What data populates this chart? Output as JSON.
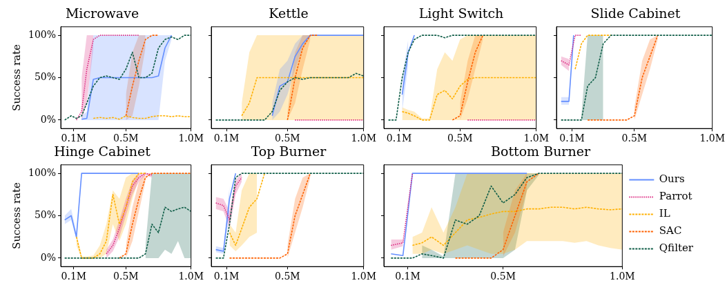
{
  "chart_data": [
    {
      "type": "line",
      "title": "Microwave",
      "ylabel": "Success rate",
      "xlim": [
        0,
        1
      ],
      "xticks": [
        {
          "value": 0.1,
          "label": "0.1M"
        },
        {
          "value": 0.5,
          "label": "0.5M"
        },
        {
          "value": 1.0,
          "label": "1.0M"
        }
      ],
      "ylim": [
        -10,
        110
      ],
      "yticks": [
        {
          "value": 0,
          "label": "0%"
        },
        {
          "value": 50,
          "label": "50%"
        },
        {
          "value": 100,
          "label": "100%"
        }
      ],
      "series": [
        {
          "color": "#648fff",
          "line_style": "solid",
          "x": [
            0.16,
            0.2,
            0.25,
            0.3,
            0.35,
            0.4,
            0.45,
            0.5,
            0.55,
            0.6,
            0.65,
            0.7,
            0.75,
            0.8,
            0.85
          ],
          "values": [
            1,
            2,
            48,
            50,
            50,
            50,
            50,
            50,
            50,
            50,
            50,
            50,
            52,
            85,
            100
          ],
          "lower": [
            0,
            0,
            0,
            0,
            0,
            0,
            0,
            0,
            0,
            0,
            0,
            0,
            0,
            70,
            95
          ],
          "upper": [
            5,
            10,
            100,
            100,
            100,
            100,
            100,
            100,
            100,
            100,
            100,
            100,
            100,
            100,
            100
          ]
        },
        {
          "color": "#dc267f",
          "line_style": "dotted",
          "x": [
            0.12,
            0.16,
            0.2,
            0.25,
            0.3,
            0.35,
            0.4,
            0.45,
            0.5,
            0.55,
            0.6
          ],
          "values": [
            0,
            10,
            60,
            95,
            100,
            100,
            100,
            100,
            100,
            100,
            100
          ],
          "lower": [
            null,
            0,
            20,
            85,
            null,
            null,
            null,
            null,
            null,
            null,
            null
          ],
          "upper": [
            null,
            50,
            100,
            100,
            null,
            null,
            null,
            null,
            null,
            null,
            null
          ]
        },
        {
          "color": "#ffb000",
          "line_style": "dashed",
          "x": [
            0.25,
            0.3,
            0.35,
            0.4,
            0.45,
            0.5,
            0.55,
            0.6,
            0.65,
            0.7,
            0.75,
            0.8,
            0.85,
            0.9,
            0.95,
            1.0
          ],
          "values": [
            2,
            3,
            2,
            3,
            1,
            5,
            3,
            2,
            2,
            4,
            5,
            5,
            4,
            5,
            4,
            4
          ]
        },
        {
          "color": "#fe6100",
          "line_style": "dashed",
          "x": [
            0.5,
            0.55,
            0.6,
            0.65,
            0.7,
            0.75
          ],
          "values": [
            5,
            40,
            70,
            95,
            100,
            100
          ],
          "lower": [
            0,
            5,
            40,
            85,
            null,
            null
          ],
          "upper": [
            30,
            80,
            100,
            100,
            null,
            null
          ]
        },
        {
          "color": "#0d5c46",
          "line_style": "dashed",
          "x": [
            0.03,
            0.08,
            0.12,
            0.16,
            0.2,
            0.25,
            0.3,
            0.35,
            0.4,
            0.45,
            0.5,
            0.55,
            0.6,
            0.65,
            0.7,
            0.75,
            0.8,
            0.85,
            0.9,
            0.95,
            1.0
          ],
          "values": [
            0,
            5,
            2,
            5,
            20,
            40,
            50,
            52,
            50,
            48,
            60,
            80,
            50,
            50,
            55,
            85,
            95,
            98,
            95,
            100,
            100
          ]
        }
      ]
    },
    {
      "type": "line",
      "title": "Kettle",
      "tick_labels": "x",
      "xlim": [
        0,
        1
      ],
      "xticks": [
        {
          "value": 0.1,
          "label": "0.1M"
        },
        {
          "value": 0.5,
          "label": "0.5M"
        },
        {
          "value": 1.0,
          "label": "1.0M"
        }
      ],
      "ylim": [
        -10,
        110
      ],
      "yticks": [
        0,
        50,
        100
      ],
      "series": [
        {
          "color": "#648fff",
          "line_style": "solid",
          "x": [
            0.4,
            0.45,
            0.5,
            0.55,
            0.6,
            0.65,
            0.7,
            0.75,
            0.8,
            0.85,
            0.9,
            0.95,
            1.0
          ],
          "values": [
            5,
            40,
            45,
            75,
            90,
            100,
            100,
            100,
            100,
            100,
            100,
            100,
            100
          ],
          "lower": [
            0,
            10,
            30,
            60,
            85,
            98,
            null,
            null,
            null,
            null,
            null,
            null,
            null
          ],
          "upper": [
            20,
            60,
            70,
            90,
            100,
            100,
            null,
            null,
            null,
            null,
            null,
            null,
            null
          ]
        },
        {
          "color": "#dc267f",
          "line_style": "dotted",
          "x": [
            0.55,
            0.6,
            0.65,
            0.7,
            0.75,
            0.8,
            0.85,
            0.9,
            0.95,
            1.0
          ],
          "values": [
            0,
            0,
            0,
            0,
            0,
            0,
            0,
            0,
            0,
            0
          ]
        },
        {
          "color": "#ffb000",
          "line_style": "dashed",
          "x": [
            0.2,
            0.25,
            0.3,
            0.35,
            0.4,
            0.45,
            0.5,
            0.55,
            0.6,
            0.65,
            0.7,
            0.75,
            0.8,
            0.85,
            0.9,
            0.95,
            1.0
          ],
          "values": [
            5,
            20,
            50,
            50,
            50,
            50,
            50,
            50,
            50,
            50,
            50,
            50,
            50,
            50,
            50,
            50,
            50
          ],
          "lower": [
            0,
            0,
            0,
            0,
            0,
            0,
            0,
            0,
            0,
            0,
            0,
            0,
            0,
            0,
            0,
            0,
            0
          ],
          "upper": [
            20,
            80,
            100,
            100,
            100,
            100,
            100,
            100,
            100,
            100,
            100,
            100,
            100,
            100,
            100,
            100,
            100
          ]
        },
        {
          "color": "#fe6100",
          "line_style": "dashed",
          "x": [
            0.5,
            0.55,
            0.6,
            0.65,
            0.7
          ],
          "values": [
            0,
            50,
            85,
            100,
            100
          ],
          "lower": [
            0,
            20,
            60,
            95,
            null
          ],
          "upper": [
            10,
            80,
            100,
            100,
            null
          ]
        },
        {
          "color": "#0d5c46",
          "line_style": "dashed",
          "x": [
            0.03,
            0.08,
            0.12,
            0.16,
            0.2,
            0.25,
            0.3,
            0.35,
            0.4,
            0.45,
            0.5,
            0.55,
            0.6,
            0.65,
            0.7,
            0.75,
            0.8,
            0.85,
            0.9,
            0.95,
            1.0
          ],
          "values": [
            0,
            0,
            0,
            0,
            0,
            0,
            0,
            0,
            10,
            35,
            45,
            50,
            48,
            50,
            50,
            50,
            50,
            50,
            50,
            55,
            52
          ]
        }
      ]
    },
    {
      "type": "line",
      "title": "Light Switch",
      "tick_labels": "x",
      "xlim": [
        0,
        1
      ],
      "xticks": [
        {
          "value": 0.1,
          "label": "0.1M"
        },
        {
          "value": 0.5,
          "label": "0.5M"
        },
        {
          "value": 1.0,
          "label": "1.0M"
        }
      ],
      "ylim": [
        -10,
        110
      ],
      "yticks": [
        0,
        50,
        100
      ],
      "series": [
        {
          "color": "#648fff",
          "line_style": "solid",
          "x": [
            0.12,
            0.16,
            0.2
          ],
          "values": [
            30,
            80,
            100
          ],
          "lower": [
            10,
            65,
            null
          ],
          "upper": [
            50,
            95,
            null
          ]
        },
        {
          "color": "#dc267f",
          "line_style": "dotted",
          "x": [
            0.55,
            0.6,
            0.65,
            0.7,
            0.75,
            0.8,
            0.85,
            0.9,
            0.95,
            1.0
          ],
          "values": [
            0,
            0,
            0,
            0,
            0,
            0,
            0,
            0,
            0,
            0
          ]
        },
        {
          "color": "#ffb000",
          "line_style": "dashed",
          "x": [
            0.12,
            0.16,
            0.2,
            0.25,
            0.3,
            0.35,
            0.4,
            0.45,
            0.5,
            0.55,
            0.6,
            0.65,
            0.7,
            0.75,
            0.8,
            0.85,
            0.9,
            0.95,
            1.0
          ],
          "values": [
            10,
            8,
            5,
            0,
            0,
            30,
            35,
            25,
            40,
            48,
            50,
            50,
            50,
            50,
            50,
            50,
            50,
            50,
            50
          ],
          "lower": [
            0,
            0,
            0,
            0,
            0,
            0,
            0,
            0,
            0,
            0,
            0,
            0,
            0,
            0,
            0,
            0,
            0,
            0,
            0
          ],
          "upper": [
            15,
            12,
            10,
            2,
            2,
            60,
            80,
            70,
            95,
            100,
            100,
            100,
            100,
            100,
            100,
            100,
            100,
            100,
            100
          ]
        },
        {
          "color": "#fe6100",
          "line_style": "dashed",
          "x": [
            0.45,
            0.5,
            0.55,
            0.6,
            0.65
          ],
          "values": [
            0,
            5,
            45,
            80,
            100
          ],
          "lower": [
            null,
            0,
            25,
            60,
            95
          ],
          "upper": [
            null,
            20,
            70,
            100,
            100
          ]
        },
        {
          "color": "#0d5c46",
          "line_style": "dashed",
          "x": [
            0.03,
            0.08,
            0.12,
            0.16,
            0.2,
            0.25,
            0.3,
            0.35,
            0.4,
            0.45,
            0.5,
            0.55,
            0.6,
            0.65,
            0.7,
            0.75,
            0.8,
            0.85,
            0.9,
            0.95,
            1.0
          ],
          "values": [
            0,
            0,
            50,
            80,
            95,
            100,
            100,
            100,
            97,
            100,
            100,
            100,
            100,
            100,
            100,
            100,
            100,
            100,
            100,
            100,
            100
          ]
        }
      ]
    },
    {
      "type": "line",
      "title": "Slide Cabinet",
      "tick_labels": "x",
      "xlim": [
        0,
        1
      ],
      "xticks": [
        {
          "value": 0.1,
          "label": "0.1M"
        },
        {
          "value": 0.5,
          "label": "0.5M"
        },
        {
          "value": 1.0,
          "label": "1.0M"
        }
      ],
      "ylim": [
        -10,
        110
      ],
      "yticks": [
        0,
        50,
        100
      ],
      "series": [
        {
          "color": "#648fff",
          "line_style": "solid",
          "x": [
            0.03,
            0.08,
            0.11
          ],
          "values": [
            22,
            22,
            100
          ],
          "lower": [
            18,
            18,
            null
          ],
          "upper": [
            27,
            27,
            null
          ]
        },
        {
          "color": "#dc267f",
          "line_style": "dotted",
          "x": [
            0.03,
            0.08,
            0.12,
            0.16
          ],
          "values": [
            70,
            65,
            100,
            100
          ],
          "lower": [
            65,
            58,
            null,
            null
          ],
          "upper": [
            75,
            72,
            null,
            null
          ]
        },
        {
          "color": "#ffb000",
          "line_style": "dashed",
          "x": [
            0.12,
            0.16,
            0.2,
            0.25,
            0.3,
            0.35
          ],
          "values": [
            60,
            90,
            100,
            100,
            100,
            100
          ]
        },
        {
          "color": "#fe6100",
          "line_style": "dashed",
          "x": [
            0.2,
            0.25,
            0.3,
            0.35,
            0.4,
            0.45,
            0.5,
            0.55,
            0.6,
            0.65
          ],
          "values": [
            0,
            0,
            0,
            0,
            0,
            0,
            5,
            50,
            75,
            100
          ],
          "lower": [
            null,
            null,
            null,
            null,
            null,
            null,
            0,
            30,
            60,
            95
          ],
          "upper": [
            null,
            null,
            null,
            null,
            null,
            null,
            15,
            70,
            95,
            100
          ]
        },
        {
          "color": "#0d5c46",
          "line_style": "dashed",
          "x": [
            0.03,
            0.08,
            0.12,
            0.16,
            0.2,
            0.25,
            0.3,
            0.35,
            0.4,
            0.45,
            0.5,
            0.55,
            0.6,
            0.65,
            0.7,
            0.75,
            0.8,
            0.85,
            0.9,
            0.95,
            1.0
          ],
          "values": [
            0,
            0,
            0,
            0,
            40,
            50,
            90,
            100,
            100,
            100,
            100,
            100,
            100,
            100,
            100,
            100,
            100,
            100,
            100,
            100,
            100
          ],
          "lower": [
            null,
            null,
            null,
            0,
            0,
            0,
            0,
            null,
            null,
            null,
            null,
            null,
            null,
            null,
            null,
            null,
            null,
            null,
            null,
            null,
            null
          ],
          "upper": [
            null,
            null,
            null,
            5,
            100,
            100,
            100,
            null,
            null,
            null,
            null,
            null,
            null,
            null,
            null,
            null,
            null,
            null,
            null,
            null,
            null
          ]
        }
      ]
    },
    {
      "type": "line",
      "title": "Hinge Cabinet",
      "ylabel": "Success rate",
      "xlim": [
        0,
        1
      ],
      "xticks": [
        {
          "value": 0.1,
          "label": "0.1M"
        },
        {
          "value": 0.5,
          "label": "0.5M"
        },
        {
          "value": 1.0,
          "label": "1.0M"
        }
      ],
      "ylim": [
        -10,
        110
      ],
      "yticks": [
        {
          "value": 0,
          "label": "0%"
        },
        {
          "value": 50,
          "label": "50%"
        },
        {
          "value": 100,
          "label": "100%"
        }
      ],
      "series": [
        {
          "color": "#648fff",
          "line_style": "solid",
          "x": [
            0.03,
            0.08,
            0.12,
            0.16,
            0.2,
            0.25,
            0.3,
            0.35,
            0.4,
            0.45,
            0.5,
            0.55,
            0.6
          ],
          "values": [
            45,
            50,
            25,
            100,
            100,
            100,
            100,
            100,
            100,
            100,
            100,
            100,
            100
          ],
          "lower": [
            40,
            45,
            22,
            null,
            null,
            null,
            null,
            null,
            null,
            null,
            null,
            null,
            null
          ],
          "upper": [
            50,
            58,
            30,
            null,
            null,
            null,
            null,
            null,
            null,
            null,
            null,
            null,
            null
          ]
        },
        {
          "color": "#dc267f",
          "line_style": "dotted",
          "x": [
            0.35,
            0.4,
            0.45,
            0.5,
            0.55,
            0.6,
            0.65,
            0.7
          ],
          "values": [
            5,
            15,
            35,
            60,
            85,
            95,
            100,
            98
          ],
          "lower": [
            0,
            8,
            25,
            50,
            75,
            90,
            98,
            95
          ],
          "upper": [
            10,
            22,
            45,
            70,
            92,
            100,
            100,
            100
          ]
        },
        {
          "color": "#ffb000",
          "line_style": "dashed",
          "x": [
            0.12,
            0.16,
            0.2,
            0.25,
            0.3,
            0.35,
            0.4,
            0.45,
            0.5,
            0.55,
            0.6,
            0.65
          ],
          "values": [
            25,
            0,
            0,
            0,
            5,
            20,
            75,
            40,
            60,
            90,
            100,
            100
          ],
          "lower": [
            15,
            0,
            0,
            0,
            0,
            5,
            40,
            20,
            40,
            70,
            95,
            null
          ],
          "upper": [
            30,
            2,
            2,
            3,
            15,
            40,
            80,
            70,
            95,
            100,
            100,
            null
          ]
        },
        {
          "color": "#fe6100",
          "line_style": "dashed",
          "x": [
            0.45,
            0.5,
            0.55,
            0.6,
            0.65,
            0.7,
            0.75,
            0.8,
            0.85,
            0.9,
            0.95,
            1.0
          ],
          "values": [
            0,
            5,
            40,
            70,
            95,
            100,
            100,
            100,
            100,
            100,
            100,
            100
          ],
          "lower": [
            null,
            0,
            20,
            55,
            90,
            null,
            null,
            null,
            null,
            null,
            null,
            null
          ],
          "upper": [
            null,
            15,
            60,
            90,
            100,
            null,
            null,
            null,
            null,
            null,
            null,
            null
          ]
        },
        {
          "color": "#0d5c46",
          "line_style": "dashed",
          "x": [
            0.03,
            0.08,
            0.12,
            0.16,
            0.2,
            0.25,
            0.3,
            0.35,
            0.4,
            0.45,
            0.5,
            0.55,
            0.6,
            0.65,
            0.7,
            0.75,
            0.8,
            0.85,
            0.9,
            0.95,
            1.0
          ],
          "values": [
            0,
            0,
            0,
            0,
            0,
            0,
            0,
            0,
            0,
            0,
            0,
            0,
            0,
            5,
            40,
            30,
            60,
            55,
            58,
            60,
            55
          ],
          "lower": [
            null,
            null,
            null,
            null,
            null,
            null,
            null,
            null,
            null,
            null,
            null,
            null,
            null,
            0,
            0,
            0,
            10,
            5,
            20,
            0,
            0
          ],
          "upper": [
            null,
            null,
            null,
            null,
            null,
            null,
            null,
            null,
            null,
            null,
            null,
            null,
            null,
            15,
            100,
            100,
            100,
            100,
            100,
            100,
            100
          ]
        }
      ]
    },
    {
      "type": "line",
      "title": "Top Burner",
      "tick_labels": "x",
      "xlim": [
        0,
        1
      ],
      "xticks": [
        {
          "value": 0.1,
          "label": "0.1M"
        },
        {
          "value": 0.5,
          "label": "0.5M"
        },
        {
          "value": 1.0,
          "label": "1.0M"
        }
      ],
      "ylim": [
        -10,
        110
      ],
      "yticks": [
        0,
        50,
        100
      ],
      "series": [
        {
          "color": "#648fff",
          "line_style": "solid",
          "x": [
            0.03,
            0.08,
            0.12,
            0.16
          ],
          "values": [
            10,
            8,
            70,
            100
          ],
          "lower": [
            7,
            5,
            50,
            null
          ],
          "upper": [
            14,
            12,
            85,
            null
          ]
        },
        {
          "color": "#dc267f",
          "line_style": "dotted",
          "x": [
            0.03,
            0.08,
            0.12,
            0.16,
            0.2
          ],
          "values": [
            65,
            62,
            45,
            85,
            95
          ],
          "lower": [
            58,
            55,
            35,
            75,
            90
          ],
          "upper": [
            72,
            70,
            55,
            92,
            100
          ]
        },
        {
          "color": "#ffb000",
          "line_style": "dashed",
          "x": [
            0.12,
            0.16,
            0.2,
            0.25,
            0.3,
            0.35
          ],
          "values": [
            30,
            15,
            35,
            60,
            70,
            100
          ],
          "lower": [
            15,
            8,
            15,
            25,
            30,
            null
          ],
          "upper": [
            40,
            30,
            80,
            100,
            100,
            null
          ]
        },
        {
          "color": "#fe6100",
          "line_style": "dashed",
          "x": [
            0.12,
            0.16,
            0.2,
            0.25,
            0.3,
            0.35,
            0.4,
            0.45,
            0.5,
            0.55,
            0.6,
            0.65
          ],
          "values": [
            0,
            0,
            0,
            0,
            0,
            0,
            0,
            0,
            5,
            50,
            75,
            100
          ],
          "lower": [
            null,
            null,
            null,
            null,
            null,
            null,
            null,
            null,
            0,
            30,
            60,
            95
          ],
          "upper": [
            null,
            null,
            null,
            null,
            null,
            null,
            null,
            null,
            15,
            70,
            95,
            100
          ]
        },
        {
          "color": "#0d5c46",
          "line_style": "dashed",
          "x": [
            0.03,
            0.08,
            0.12,
            0.16,
            0.2,
            0.25,
            0.3,
            0.35,
            0.4,
            0.45,
            0.5,
            0.55,
            0.6,
            0.65,
            0.7,
            0.75,
            0.8,
            0.85,
            0.9,
            0.95,
            1.0
          ],
          "values": [
            0,
            0,
            40,
            95,
            100,
            100,
            100,
            100,
            100,
            100,
            100,
            100,
            100,
            100,
            100,
            100,
            100,
            100,
            100,
            100,
            100
          ]
        }
      ]
    },
    {
      "type": "line",
      "title": "Bottom Burner",
      "tick_labels": "x",
      "legend": "right",
      "xlim": [
        0,
        1
      ],
      "xticks": [
        {
          "value": 0.1,
          "label": "0.1M"
        },
        {
          "value": 0.5,
          "label": "0.5M"
        },
        {
          "value": 1.0,
          "label": "1.0M"
        }
      ],
      "ylim": [
        -10,
        110
      ],
      "yticks": [
        0,
        50,
        100
      ],
      "series": [
        {
          "name": "Ours",
          "color": "#648fff",
          "line_style": "solid",
          "x": [
            0.03,
            0.08,
            0.12,
            0.16,
            0.2,
            0.25,
            0.3,
            0.35,
            0.4,
            0.45,
            0.5,
            0.55,
            0.6
          ],
          "values": [
            5,
            3,
            100,
            100,
            100,
            100,
            100,
            100,
            100,
            100,
            100,
            100,
            100
          ]
        },
        {
          "name": "Parrot",
          "color": "#dc267f",
          "line_style": "dotted",
          "x": [
            0.03,
            0.08,
            0.12
          ],
          "values": [
            15,
            18,
            100
          ],
          "lower": [
            10,
            14,
            null
          ],
          "upper": [
            22,
            22,
            null
          ]
        },
        {
          "name": "IL",
          "color": "#ffb000",
          "line_style": "dashed",
          "x": [
            0.12,
            0.16,
            0.2,
            0.25,
            0.3,
            0.35,
            0.4,
            0.45,
            0.5,
            0.55,
            0.6,
            0.65,
            0.7,
            0.75,
            0.8,
            0.85,
            0.9,
            0.95,
            1.0
          ],
          "values": [
            15,
            18,
            25,
            15,
            30,
            45,
            48,
            52,
            55,
            55,
            58,
            58,
            60,
            60,
            58,
            60,
            58,
            57,
            58
          ],
          "lower": [
            5,
            5,
            10,
            5,
            10,
            15,
            10,
            5,
            5,
            10,
            20,
            20,
            20,
            20,
            18,
            20,
            15,
            12,
            10
          ],
          "upper": [
            25,
            30,
            60,
            30,
            60,
            100,
            100,
            100,
            100,
            100,
            100,
            100,
            100,
            100,
            100,
            100,
            100,
            100,
            100
          ]
        },
        {
          "name": "SAC",
          "color": "#fe6100",
          "line_style": "dashed",
          "x": [
            0.3,
            0.35,
            0.4,
            0.45,
            0.5,
            0.55,
            0.6,
            0.65
          ],
          "values": [
            0,
            0,
            0,
            0,
            10,
            50,
            90,
            100
          ],
          "lower": [
            null,
            null,
            null,
            null,
            2,
            30,
            80,
            null
          ],
          "upper": [
            null,
            null,
            null,
            null,
            30,
            80,
            100,
            null
          ]
        },
        {
          "name": "Qfilter",
          "color": "#0d5c46",
          "line_style": "dashed",
          "x": [
            0.03,
            0.08,
            0.12,
            0.16,
            0.2,
            0.25,
            0.3,
            0.35,
            0.4,
            0.45,
            0.5,
            0.55,
            0.6,
            0.65,
            0.7,
            0.75,
            0.8,
            0.85,
            0.9,
            0.95,
            1.0
          ],
          "values": [
            0,
            0,
            0,
            5,
            3,
            0,
            45,
            40,
            50,
            85,
            65,
            75,
            95,
            100,
            100,
            100,
            100,
            100,
            100,
            100,
            100
          ],
          "lower": [
            null,
            null,
            null,
            0,
            0,
            0,
            0,
            0,
            0,
            0,
            0,
            10,
            80,
            98,
            null,
            null,
            null,
            null,
            null,
            null,
            null
          ],
          "upper": [
            null,
            null,
            null,
            15,
            10,
            2,
            100,
            100,
            100,
            100,
            100,
            100,
            100,
            100,
            null,
            null,
            null,
            null,
            null,
            null,
            null
          ]
        }
      ]
    }
  ]
}
